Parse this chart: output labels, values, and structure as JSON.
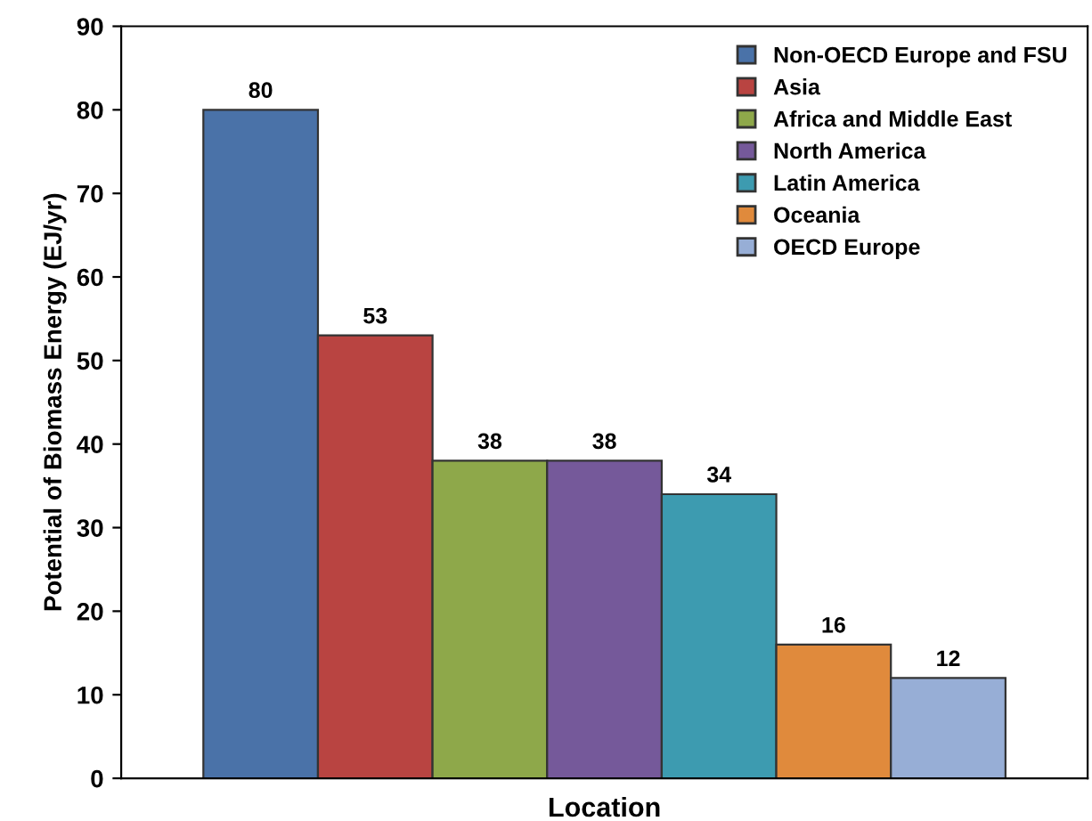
{
  "chart_data": {
    "type": "bar",
    "xlabel": "Location",
    "ylabel": "Potential of Biomass Energy (EJ/yr)",
    "categories": [
      null
    ],
    "series": [
      {
        "name": "Non-OECD Europe and FSU",
        "color": "#4a72a8",
        "values": [
          80
        ]
      },
      {
        "name": "Asia",
        "color": "#b94441",
        "values": [
          53
        ]
      },
      {
        "name": "Africa and Middle East",
        "color": "#8ea84a",
        "values": [
          38
        ]
      },
      {
        "name": "North America",
        "color": "#75599a",
        "values": [
          38
        ]
      },
      {
        "name": "Latin America",
        "color": "#3d9bb0",
        "values": [
          34
        ]
      },
      {
        "name": "Oceania",
        "color": "#e08a3c",
        "values": [
          16
        ]
      },
      {
        "name": "OECD Europe",
        "color": "#97aed6",
        "values": [
          12
        ]
      }
    ],
    "ylim": [
      0,
      90
    ],
    "yticks": [
      0,
      10,
      20,
      30,
      40,
      50,
      60,
      70,
      80,
      90
    ],
    "grid": false,
    "legend": "top right",
    "data_labels": true
  }
}
